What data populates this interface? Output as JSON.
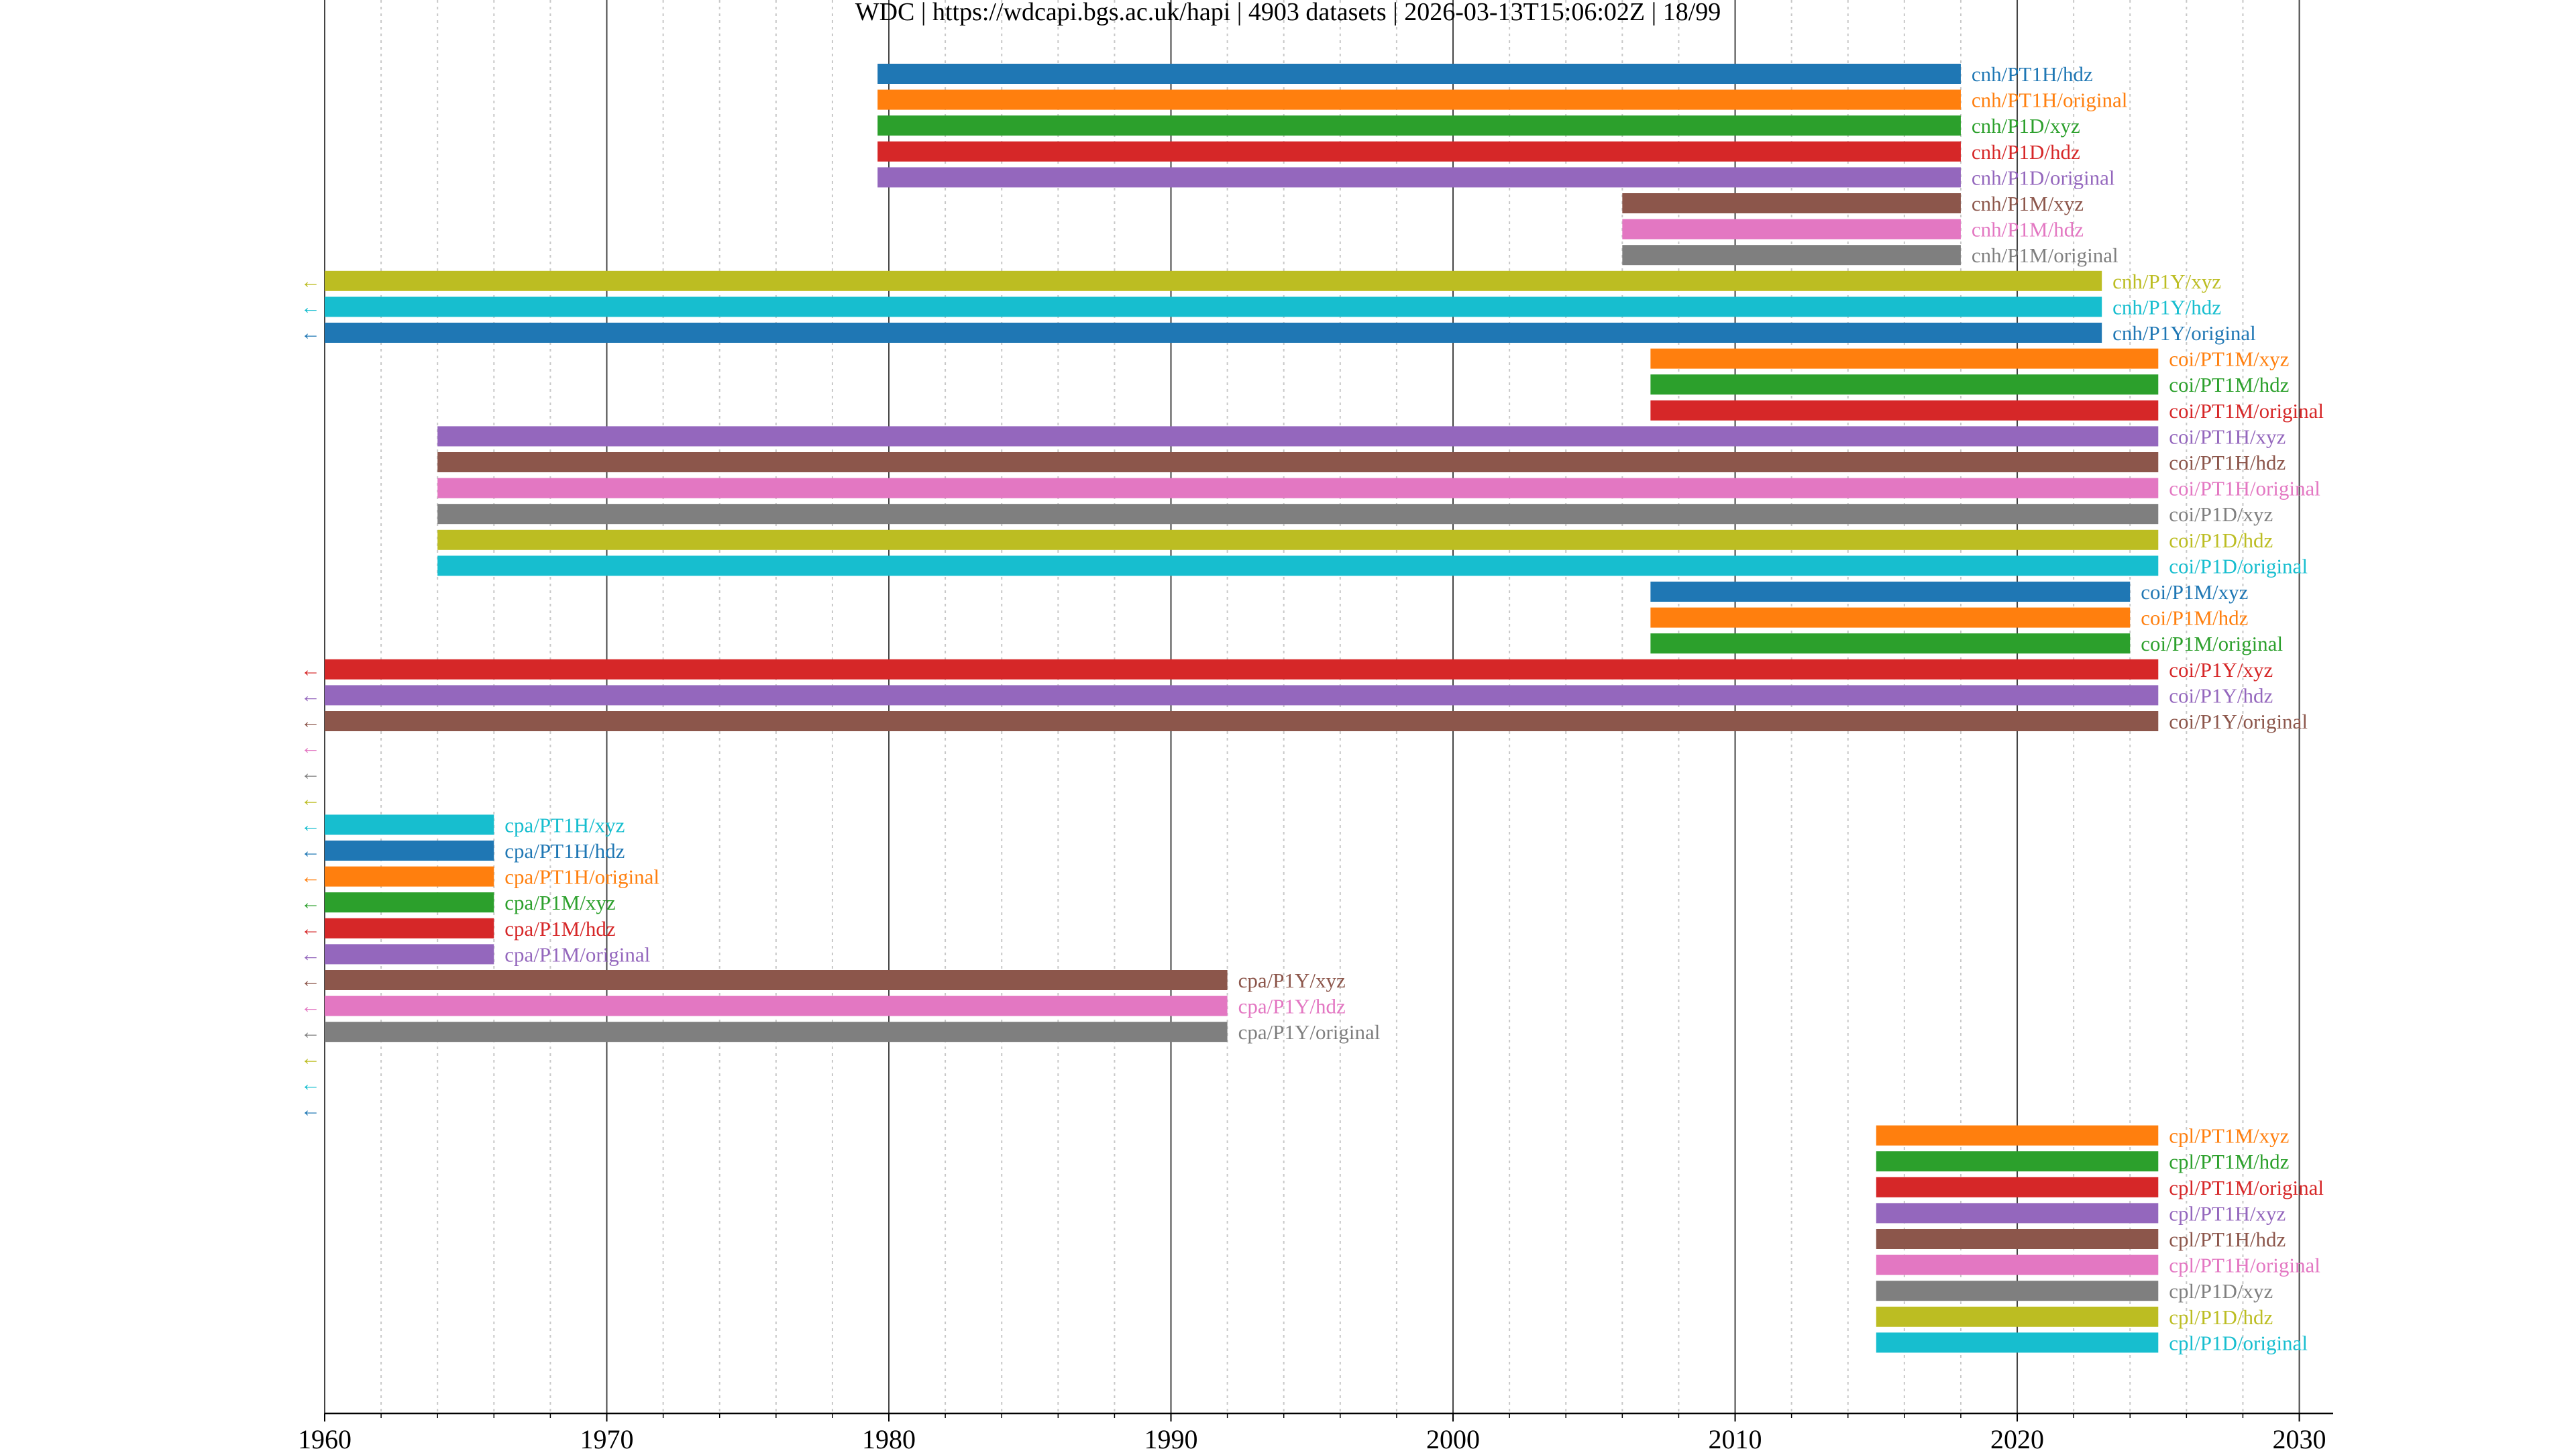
{
  "chart_data": {
    "type": "timeline",
    "title": "WDC | https://wdcapi.bgs.ac.uk/hapi | 4903 datasets | 2026-03-13T15:06:02Z | 18/99",
    "xlabel": "",
    "ylabel": "",
    "xlim": [
      1960,
      2031.2
    ],
    "x_ticks": [
      1960,
      1970,
      1980,
      1990,
      2000,
      2010,
      2020,
      2030
    ],
    "x_tick_labels": [
      "1960",
      "1970",
      "1980",
      "1990",
      "2000",
      "2010",
      "2020",
      "2030"
    ],
    "minor_grid_step_years": 2,
    "grid": true,
    "left_truncation_marker": "←",
    "palette": [
      "#1f77b4",
      "#ff7f0e",
      "#2ca02c",
      "#d62728",
      "#9467bd",
      "#8c564b",
      "#e377c2",
      "#7f7f7f",
      "#bcbd22",
      "#17becf"
    ],
    "rows": [
      {
        "label": "cnh/PT1H/hdz",
        "start": 1979.6,
        "stop": 2018.0,
        "truncated": false
      },
      {
        "label": "cnh/PT1H/original",
        "start": 1979.6,
        "stop": 2018.0,
        "truncated": false
      },
      {
        "label": "cnh/P1D/xyz",
        "start": 1979.6,
        "stop": 2018.0,
        "truncated": false
      },
      {
        "label": "cnh/P1D/hdz",
        "start": 1979.6,
        "stop": 2018.0,
        "truncated": false
      },
      {
        "label": "cnh/P1D/original",
        "start": 1979.6,
        "stop": 2018.0,
        "truncated": false
      },
      {
        "label": "cnh/P1M/xyz",
        "start": 2006.0,
        "stop": 2018.0,
        "truncated": false
      },
      {
        "label": "cnh/P1M/hdz",
        "start": 2006.0,
        "stop": 2018.0,
        "truncated": false
      },
      {
        "label": "cnh/P1M/original",
        "start": 2006.0,
        "stop": 2018.0,
        "truncated": false
      },
      {
        "label": "cnh/P1Y/xyz",
        "start": 1960.0,
        "stop": 2023.0,
        "truncated": true
      },
      {
        "label": "cnh/P1Y/hdz",
        "start": 1960.0,
        "stop": 2023.0,
        "truncated": true
      },
      {
        "label": "cnh/P1Y/original",
        "start": 1960.0,
        "stop": 2023.0,
        "truncated": true
      },
      {
        "label": "coi/PT1M/xyz",
        "start": 2007.0,
        "stop": 2025.0,
        "truncated": false
      },
      {
        "label": "coi/PT1M/hdz",
        "start": 2007.0,
        "stop": 2025.0,
        "truncated": false
      },
      {
        "label": "coi/PT1M/original",
        "start": 2007.0,
        "stop": 2025.0,
        "truncated": false
      },
      {
        "label": "coi/PT1H/xyz",
        "start": 1964.0,
        "stop": 2025.0,
        "truncated": false
      },
      {
        "label": "coi/PT1H/hdz",
        "start": 1964.0,
        "stop": 2025.0,
        "truncated": false
      },
      {
        "label": "coi/PT1H/original",
        "start": 1964.0,
        "stop": 2025.0,
        "truncated": false
      },
      {
        "label": "coi/P1D/xyz",
        "start": 1964.0,
        "stop": 2025.0,
        "truncated": false
      },
      {
        "label": "coi/P1D/hdz",
        "start": 1964.0,
        "stop": 2025.0,
        "truncated": false
      },
      {
        "label": "coi/P1D/original",
        "start": 1964.0,
        "stop": 2025.0,
        "truncated": false
      },
      {
        "label": "coi/P1M/xyz",
        "start": 2007.0,
        "stop": 2024.0,
        "truncated": false
      },
      {
        "label": "coi/P1M/hdz",
        "start": 2007.0,
        "stop": 2024.0,
        "truncated": false
      },
      {
        "label": "coi/P1M/original",
        "start": 2007.0,
        "stop": 2024.0,
        "truncated": false
      },
      {
        "label": "coi/P1Y/xyz",
        "start": 1960.0,
        "stop": 2025.0,
        "truncated": true
      },
      {
        "label": "coi/P1Y/hdz",
        "start": 1960.0,
        "stop": 2025.0,
        "truncated": true
      },
      {
        "label": "coi/P1Y/original",
        "start": 1960.0,
        "stop": 2025.0,
        "truncated": true
      },
      {
        "label": "",
        "start": null,
        "stop": null,
        "truncated": true
      },
      {
        "label": "",
        "start": null,
        "stop": null,
        "truncated": true
      },
      {
        "label": "",
        "start": null,
        "stop": null,
        "truncated": true
      },
      {
        "label": "cpa/PT1H/xyz",
        "start": 1960.0,
        "stop": 1966.0,
        "truncated": true
      },
      {
        "label": "cpa/PT1H/hdz",
        "start": 1960.0,
        "stop": 1966.0,
        "truncated": true
      },
      {
        "label": "cpa/PT1H/original",
        "start": 1960.0,
        "stop": 1966.0,
        "truncated": true
      },
      {
        "label": "cpa/P1M/xyz",
        "start": 1960.0,
        "stop": 1966.0,
        "truncated": true
      },
      {
        "label": "cpa/P1M/hdz",
        "start": 1960.0,
        "stop": 1966.0,
        "truncated": true
      },
      {
        "label": "cpa/P1M/original",
        "start": 1960.0,
        "stop": 1966.0,
        "truncated": true
      },
      {
        "label": "cpa/P1Y/xyz",
        "start": 1960.0,
        "stop": 1992.0,
        "truncated": true
      },
      {
        "label": "cpa/P1Y/hdz",
        "start": 1960.0,
        "stop": 1992.0,
        "truncated": true
      },
      {
        "label": "cpa/P1Y/original",
        "start": 1960.0,
        "stop": 1992.0,
        "truncated": true
      },
      {
        "label": "",
        "start": null,
        "stop": null,
        "truncated": true
      },
      {
        "label": "",
        "start": null,
        "stop": null,
        "truncated": true
      },
      {
        "label": "",
        "start": null,
        "stop": null,
        "truncated": true
      },
      {
        "label": "cpl/PT1M/xyz",
        "start": 2015.0,
        "stop": 2025.0,
        "truncated": false
      },
      {
        "label": "cpl/PT1M/hdz",
        "start": 2015.0,
        "stop": 2025.0,
        "truncated": false
      },
      {
        "label": "cpl/PT1M/original",
        "start": 2015.0,
        "stop": 2025.0,
        "truncated": false
      },
      {
        "label": "cpl/PT1H/xyz",
        "start": 2015.0,
        "stop": 2025.0,
        "truncated": false
      },
      {
        "label": "cpl/PT1H/hdz",
        "start": 2015.0,
        "stop": 2025.0,
        "truncated": false
      },
      {
        "label": "cpl/PT1H/original",
        "start": 2015.0,
        "stop": 2025.0,
        "truncated": false
      },
      {
        "label": "cpl/P1D/xyz",
        "start": 2015.0,
        "stop": 2025.0,
        "truncated": false
      },
      {
        "label": "cpl/P1D/hdz",
        "start": 2015.0,
        "stop": 2025.0,
        "truncated": false
      },
      {
        "label": "cpl/P1D/original",
        "start": 2015.0,
        "stop": 2025.0,
        "truncated": false
      }
    ]
  }
}
